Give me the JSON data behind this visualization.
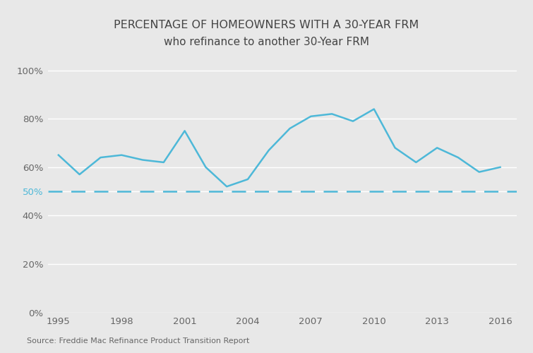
{
  "title_line1": "PERCENTAGE OF HOMEOWNERS WITH A 30-YEAR FRM",
  "title_line2": "who refinance to another 30-Year FRM",
  "source": "Source: Freddie Mac Refinance Product Transition Report",
  "x": [
    1995,
    1996,
    1997,
    1998,
    1999,
    2000,
    2001,
    2002,
    2003,
    2004,
    2005,
    2006,
    2007,
    2008,
    2009,
    2010,
    2011,
    2012,
    2013,
    2014,
    2015,
    2016
  ],
  "y": [
    0.65,
    0.57,
    0.64,
    0.65,
    0.63,
    0.62,
    0.75,
    0.6,
    0.52,
    0.55,
    0.67,
    0.76,
    0.81,
    0.82,
    0.79,
    0.84,
    0.68,
    0.62,
    0.68,
    0.64,
    0.58,
    0.6
  ],
  "line_color": "#4db8d8",
  "dashed_line_y": 0.5,
  "dashed_color": "#4db8d8",
  "background_color": "#e8e8e8",
  "gridline_color": "#c8c8c8",
  "ytick_positions": [
    0.0,
    0.2,
    0.4,
    0.5,
    0.6,
    0.8,
    1.0
  ],
  "ytick_labels": [
    "0%",
    "20%",
    "40%",
    "50%",
    "60%",
    "80%",
    "100%"
  ],
  "ytick_colors": [
    "#666666",
    "#666666",
    "#666666",
    "#4db8d8",
    "#666666",
    "#666666",
    "#666666"
  ],
  "xtick_labels": [
    "1995",
    "1998",
    "2001",
    "2004",
    "2007",
    "2010",
    "2013",
    "2016"
  ],
  "xtick_positions": [
    1995,
    1998,
    2001,
    2004,
    2007,
    2010,
    2013,
    2016
  ],
  "ylim": [
    0.0,
    1.05
  ],
  "xlim": [
    1994.5,
    2016.8
  ],
  "title_fontsize": 11.5,
  "subtitle_fontsize": 11,
  "tick_fontsize": 9.5,
  "source_fontsize": 8,
  "line_width": 1.8
}
